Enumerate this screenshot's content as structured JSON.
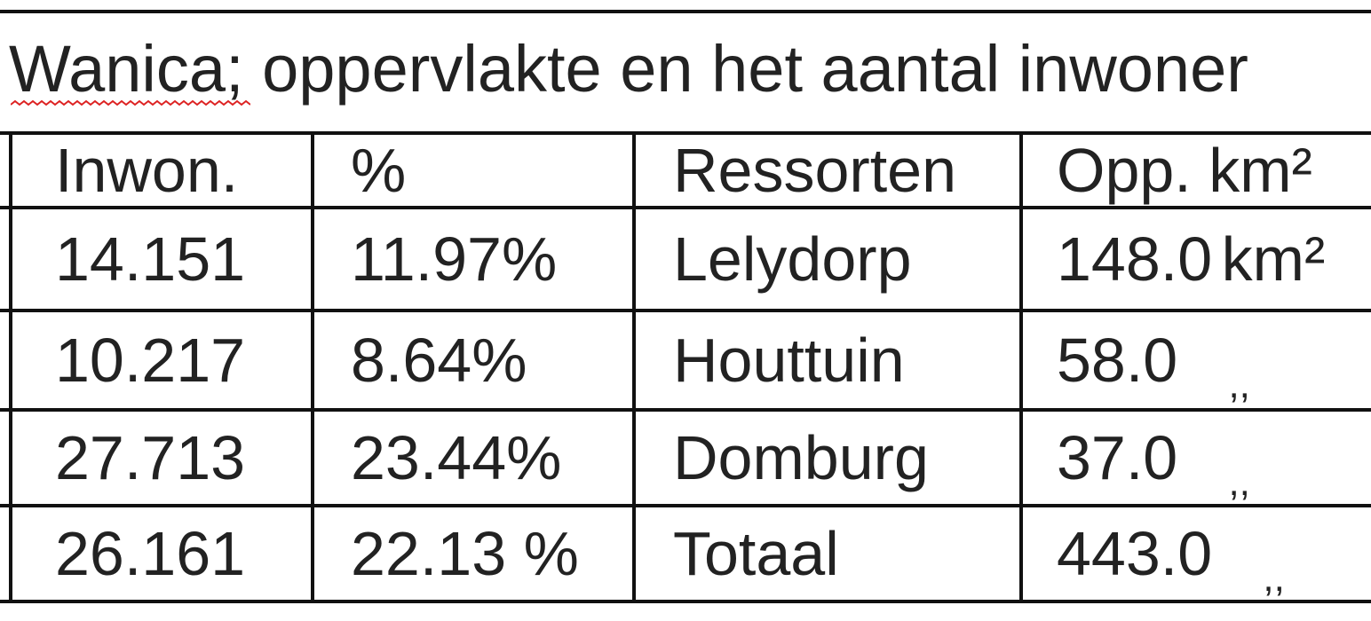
{
  "title": "Wanica; oppervlakte en het aantal inwoner",
  "table": {
    "header": [
      "Inwon.",
      "%",
      "Ressorten",
      "Opp. km²"
    ],
    "rows": [
      [
        "14.151",
        "11.97%",
        "Lelydorp",
        {
          "text": "148.0",
          "unit": "km²"
        }
      ],
      [
        "10.217",
        "8.64%",
        "Houttuin",
        {
          "text": "58.0",
          "unit": ",,"
        }
      ],
      [
        "27.713",
        "23.44%",
        "Domburg",
        {
          "text": "37.0",
          "unit": ",,"
        }
      ],
      [
        "26.161",
        "22.13 %",
        "Totaal",
        {
          "text": "443.0",
          "unit": ",,"
        }
      ]
    ]
  }
}
